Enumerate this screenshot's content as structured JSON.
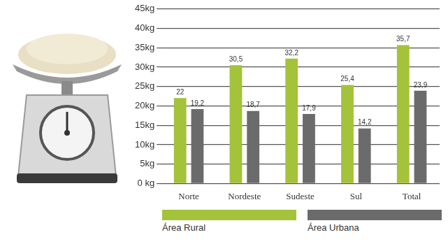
{
  "chart_data": {
    "type": "bar",
    "categories": [
      "Norte",
      "Nordeste",
      "Sudeste",
      "Sul",
      "Total"
    ],
    "series": [
      {
        "name": "Área Rural",
        "color": "#a4c23a",
        "values": [
          22,
          30.5,
          32.2,
          25.4,
          35.7
        ],
        "value_labels": [
          "22",
          "30,5",
          "32,2",
          "25,4",
          "35,7"
        ]
      },
      {
        "name": "Área Urbana",
        "color": "#6b6b6b",
        "values": [
          19.2,
          18.7,
          17.9,
          14.2,
          23.9
        ],
        "value_labels": [
          "19,2",
          "18,7",
          "17,9",
          "14,2",
          "23,9"
        ]
      }
    ],
    "ylim": [
      0,
      45
    ],
    "yticks": [
      {
        "value": 0,
        "label": "0 kg"
      },
      {
        "value": 5,
        "label": "5kg"
      },
      {
        "value": 10,
        "label": "10kg"
      },
      {
        "value": 15,
        "label": "15kg"
      },
      {
        "value": 20,
        "label": "20kg"
      },
      {
        "value": 25,
        "label": "25kg"
      },
      {
        "value": 30,
        "label": "30kg"
      },
      {
        "value": 35,
        "label": "35kg"
      },
      {
        "value": 40,
        "label": "40kg"
      },
      {
        "value": 45,
        "label": "45kg"
      }
    ],
    "grid": true,
    "data_labels": true,
    "legend": "bottom"
  }
}
